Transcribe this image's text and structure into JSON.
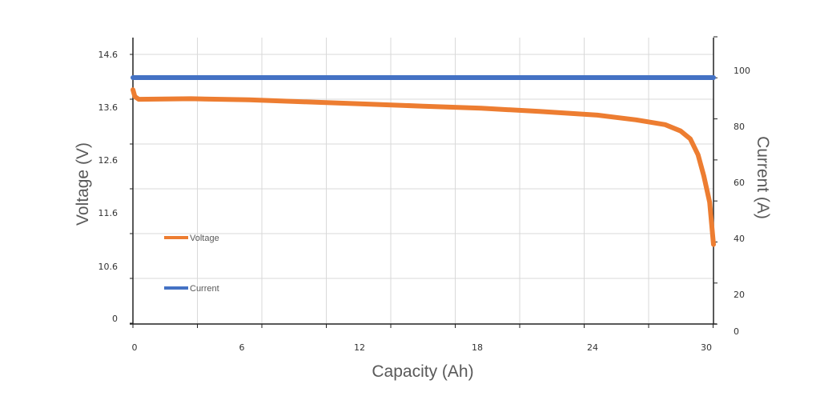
{
  "chart_data": {
    "type": "line",
    "xlabel": "Capacity (Ah)",
    "ylabel": "Voltage (V)",
    "y2label": "Current (A)",
    "x_ticks": [
      "0",
      "6",
      "12",
      "18",
      "24",
      "30"
    ],
    "y_ticks": [
      "14.6",
      "13.6",
      "12.6",
      "11.6",
      "10.6",
      "0"
    ],
    "y2_ticks": [
      "100",
      "80",
      "60",
      "40",
      "20",
      "0"
    ],
    "xlim": [
      0,
      30
    ],
    "y2lim": [
      0,
      100
    ],
    "grid": true,
    "legend_position": "left-inside",
    "series": [
      {
        "name": "Voltage",
        "axis": "left",
        "color": "#ED7D31",
        "x": [
          0,
          0.1,
          0.3,
          3,
          6,
          9,
          12,
          15,
          18,
          21,
          24,
          26,
          27.5,
          28.3,
          28.8,
          29.2,
          29.5,
          29.8,
          30
        ],
        "y": [
          13.93,
          13.8,
          13.75,
          13.76,
          13.74,
          13.7,
          13.66,
          13.62,
          13.58,
          13.52,
          13.45,
          13.36,
          13.27,
          13.15,
          13.0,
          12.7,
          12.3,
          11.8,
          11.0
        ]
      },
      {
        "name": "Current",
        "axis": "right",
        "color": "#4472C4",
        "x": [
          0,
          30
        ],
        "y": [
          100,
          100
        ]
      }
    ]
  }
}
